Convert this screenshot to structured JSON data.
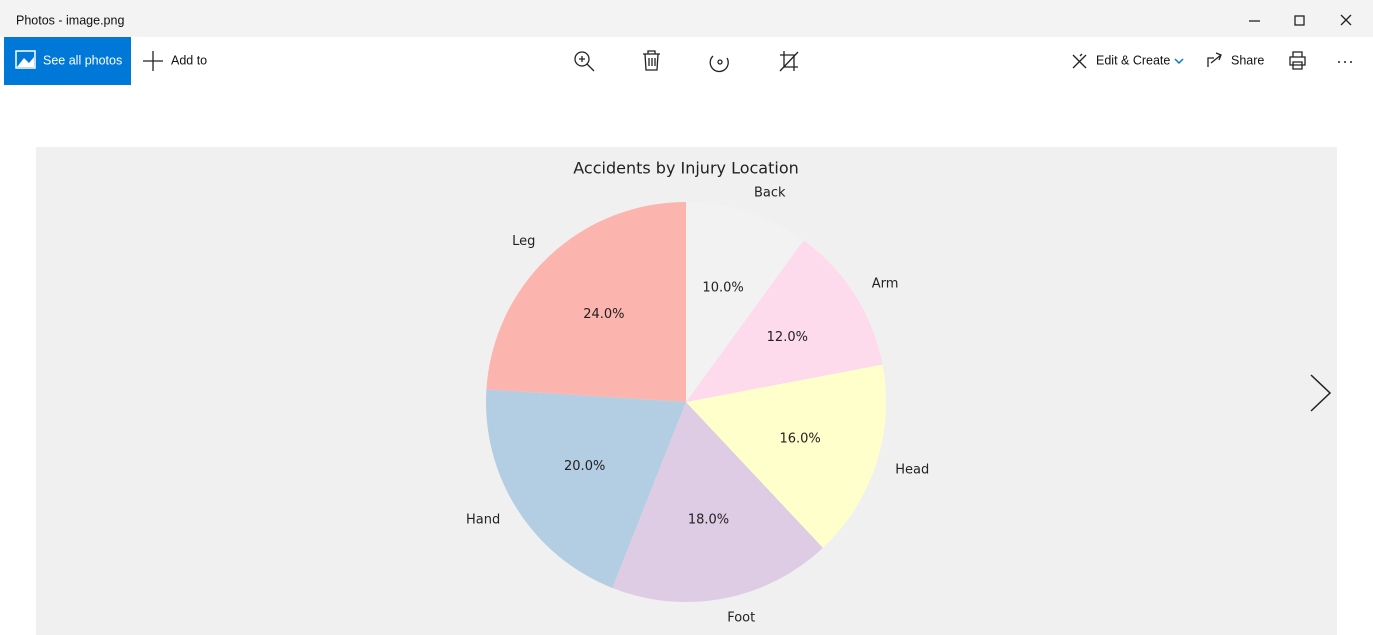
{
  "window": {
    "title": "Photos - image.png"
  },
  "toolbar": {
    "see_all": "See all photos",
    "add_to": "Add to",
    "edit_create": "Edit & Create",
    "share": "Share"
  },
  "chart_data": {
    "type": "pie",
    "title": "Accidents by Injury Location",
    "categories": [
      "Leg",
      "Hand",
      "Foot",
      "Head",
      "Arm",
      "Back"
    ],
    "values": [
      24,
      20,
      18,
      16,
      12,
      10
    ],
    "value_labels": [
      "24.0%",
      "20.0%",
      "18.0%",
      "16.0%",
      "12.0%",
      "10.0%"
    ],
    "colors": [
      "#fbb4ae",
      "#b3cde3",
      "#decbe4",
      "#ffffcc",
      "#fddaec",
      "#f2f2f2"
    ]
  }
}
